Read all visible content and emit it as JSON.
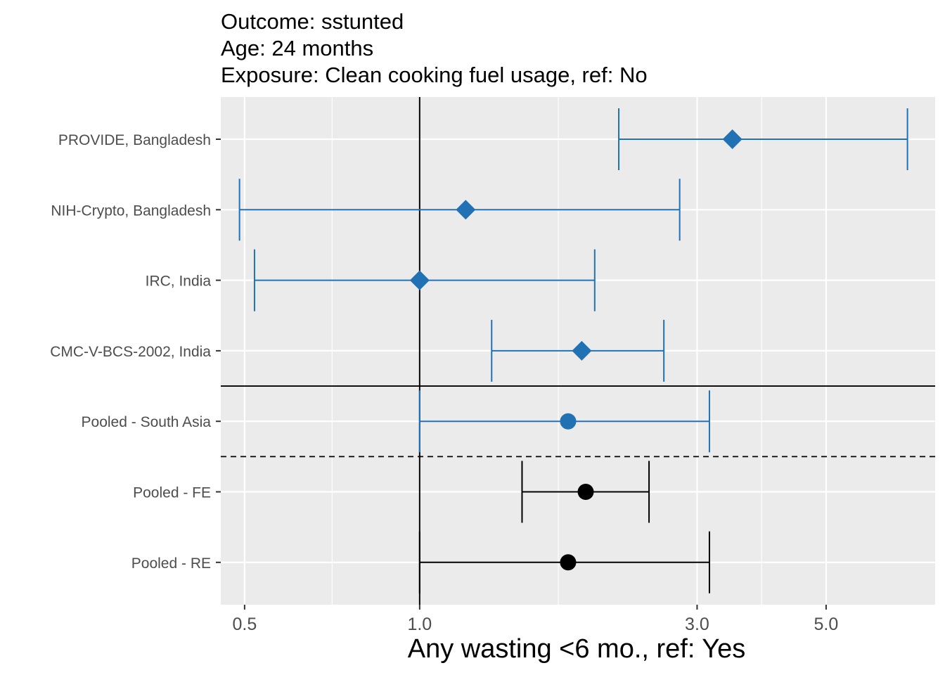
{
  "chart_data": {
    "type": "forest",
    "title": [
      "Outcome: sstunted",
      "Age: 24 months",
      "Exposure: Clean cooking fuel usage, ref: No"
    ],
    "xlabel": "Any wasting  <6 mo., ref: Yes",
    "ylabel": "",
    "x_scale": "log",
    "xlim": [
      0.455,
      7.7
    ],
    "x_ticks": [
      0.5,
      1.0,
      3.0,
      5.0
    ],
    "x_tick_labels": [
      "0.5",
      "1.0",
      "3.0",
      "5.0"
    ],
    "x_minor_ticks": [
      0.707,
      1.732,
      3.873
    ],
    "reference_line": 1.0,
    "grid": true,
    "colors": {
      "study": "#2171b5",
      "pooled_region": "#2171b5",
      "pooled_overall": "#000000",
      "panel": "#ebebeb",
      "grid": "#ffffff"
    },
    "categories": [
      "PROVIDE, Bangladesh",
      "NIH-Crypto, Bangladesh",
      "IRC, India",
      "CMC-V-BCS-2002, India",
      "Pooled - South Asia",
      "Pooled - FE",
      "Pooled - RE"
    ],
    "rows": [
      {
        "label": "PROVIDE, Bangladesh",
        "estimate": 3.45,
        "lower": 2.2,
        "upper": 6.9,
        "shape": "diamond",
        "color": "#2171b5"
      },
      {
        "label": "NIH-Crypto, Bangladesh",
        "estimate": 1.2,
        "lower": 0.49,
        "upper": 2.8,
        "shape": "diamond",
        "color": "#2171b5"
      },
      {
        "label": "IRC, India",
        "estimate": 1.0,
        "lower": 0.52,
        "upper": 2.0,
        "shape": "diamond",
        "color": "#2171b5"
      },
      {
        "label": "CMC-V-BCS-2002, India",
        "estimate": 1.9,
        "lower": 1.33,
        "upper": 2.63,
        "shape": "diamond",
        "color": "#2171b5"
      },
      {
        "label": "Pooled - South Asia",
        "estimate": 1.8,
        "lower": 1.0,
        "upper": 3.15,
        "shape": "circle",
        "color": "#2171b5"
      },
      {
        "label": "Pooled - FE",
        "estimate": 1.93,
        "lower": 1.5,
        "upper": 2.48,
        "shape": "circle",
        "color": "#000000"
      },
      {
        "label": "Pooled - RE",
        "estimate": 1.8,
        "lower": 1.0,
        "upper": 3.15,
        "shape": "circle",
        "color": "#000000"
      }
    ],
    "separators": [
      {
        "after_row": "CMC-V-BCS-2002, India",
        "style": "solid"
      },
      {
        "after_row": "Pooled - South Asia",
        "style": "dashed"
      }
    ]
  }
}
